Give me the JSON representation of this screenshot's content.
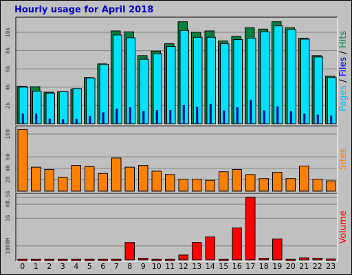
{
  "page": {
    "title": "Hourly usage for April 2018"
  },
  "chart_data": {
    "type": "bar",
    "categories": [
      "0",
      "1",
      "2",
      "3",
      "4",
      "5",
      "6",
      "7",
      "8",
      "9",
      "10",
      "11",
      "12",
      "13",
      "14",
      "15",
      "16",
      "17",
      "18",
      "19",
      "20",
      "21",
      "22",
      "23"
    ],
    "colors": {
      "hits": "#008040",
      "files": "#00e0ff",
      "pages": "#00008b",
      "sites": "#ff8000",
      "volume": "#ff0000",
      "panel_bg": "#c0c0c0",
      "frame_bg": "#c0c0c0"
    },
    "panels": [
      {
        "name": "hits-files-pages",
        "side_label": [
          {
            "text": "Pages",
            "color": "#00c0ff"
          },
          {
            "text": " / ",
            "color": "#000000"
          },
          {
            "text": "Files",
            "color": "#0000ff"
          },
          {
            "text": " / ",
            "color": "#000000"
          },
          {
            "text": "Hits",
            "color": "#008040"
          }
        ],
        "ymax": 11500,
        "ticks": [
          {
            "v": 2000,
            "label": "2k"
          },
          {
            "v": 4000,
            "label": "4k"
          },
          {
            "v": 6000,
            "label": "6k"
          },
          {
            "v": 8000,
            "label": "8k"
          },
          {
            "v": 10000,
            "label": "10k"
          }
        ],
        "series": [
          {
            "name": "Hits",
            "values": [
              4100,
              4050,
              3450,
              3500,
              3800,
              5050,
              6550,
              10150,
              10050,
              7450,
              7950,
              8750,
              11150,
              10000,
              10150,
              9050,
              9550,
              10500,
              10350,
              11150,
              10500,
              9350,
              7450,
              5200
            ]
          },
          {
            "name": "Files",
            "values": [
              4000,
              3550,
              3350,
              3500,
              3850,
              5000,
              6500,
              9700,
              9400,
              7050,
              7650,
              8450,
              10200,
              9450,
              9450,
              8750,
              9200,
              9350,
              10050,
              10700,
              10300,
              9250,
              7300,
              5050
            ]
          },
          {
            "name": "Pages",
            "values": [
              1100,
              1100,
              550,
              500,
              550,
              850,
              1250,
              1650,
              1800,
              1400,
              1500,
              1500,
              2050,
              1850,
              2150,
              1450,
              1800,
              2600,
              1450,
              1900,
              1400,
              1100,
              1000,
              900
            ]
          }
        ]
      },
      {
        "name": "sites",
        "side_label": [
          {
            "text": "Sites",
            "color": "#ff8000"
          }
        ],
        "ymax": 112,
        "ticks": [
          {
            "v": 20,
            "label": "20"
          },
          {
            "v": 40,
            "label": "40"
          },
          {
            "v": 60,
            "label": "60"
          },
          {
            "v": 100,
            "label": "100"
          }
        ],
        "series": [
          {
            "name": "Sites",
            "values": [
              108,
              42,
              38,
              24,
              45,
              43,
              31,
              58,
              42,
              45,
              35,
              29,
              21,
              21,
              19,
              34,
              38,
              29,
              22,
              33,
              22,
              44,
              21,
              18
            ]
          }
        ]
      },
      {
        "name": "volume",
        "side_label": [
          {
            "text": "Volume",
            "color": "#ff0000"
          }
        ],
        "ymax": 4700,
        "ticks": [
          {
            "v": 1000,
            "label": "1000M"
          },
          {
            "v": 3000,
            "label": "3G"
          },
          {
            "v": 4000,
            "label": "4G"
          },
          {
            "v": 4500,
            "label": "4.5G"
          }
        ],
        "series": [
          {
            "name": "Volume",
            "values": [
              40,
              40,
              40,
              40,
              40,
              40,
              40,
              40,
              1250,
              120,
              40,
              40,
              350,
              1250,
              1650,
              40,
              2300,
              4500,
              120,
              1500,
              40,
              150,
              120,
              60
            ]
          }
        ]
      }
    ]
  }
}
